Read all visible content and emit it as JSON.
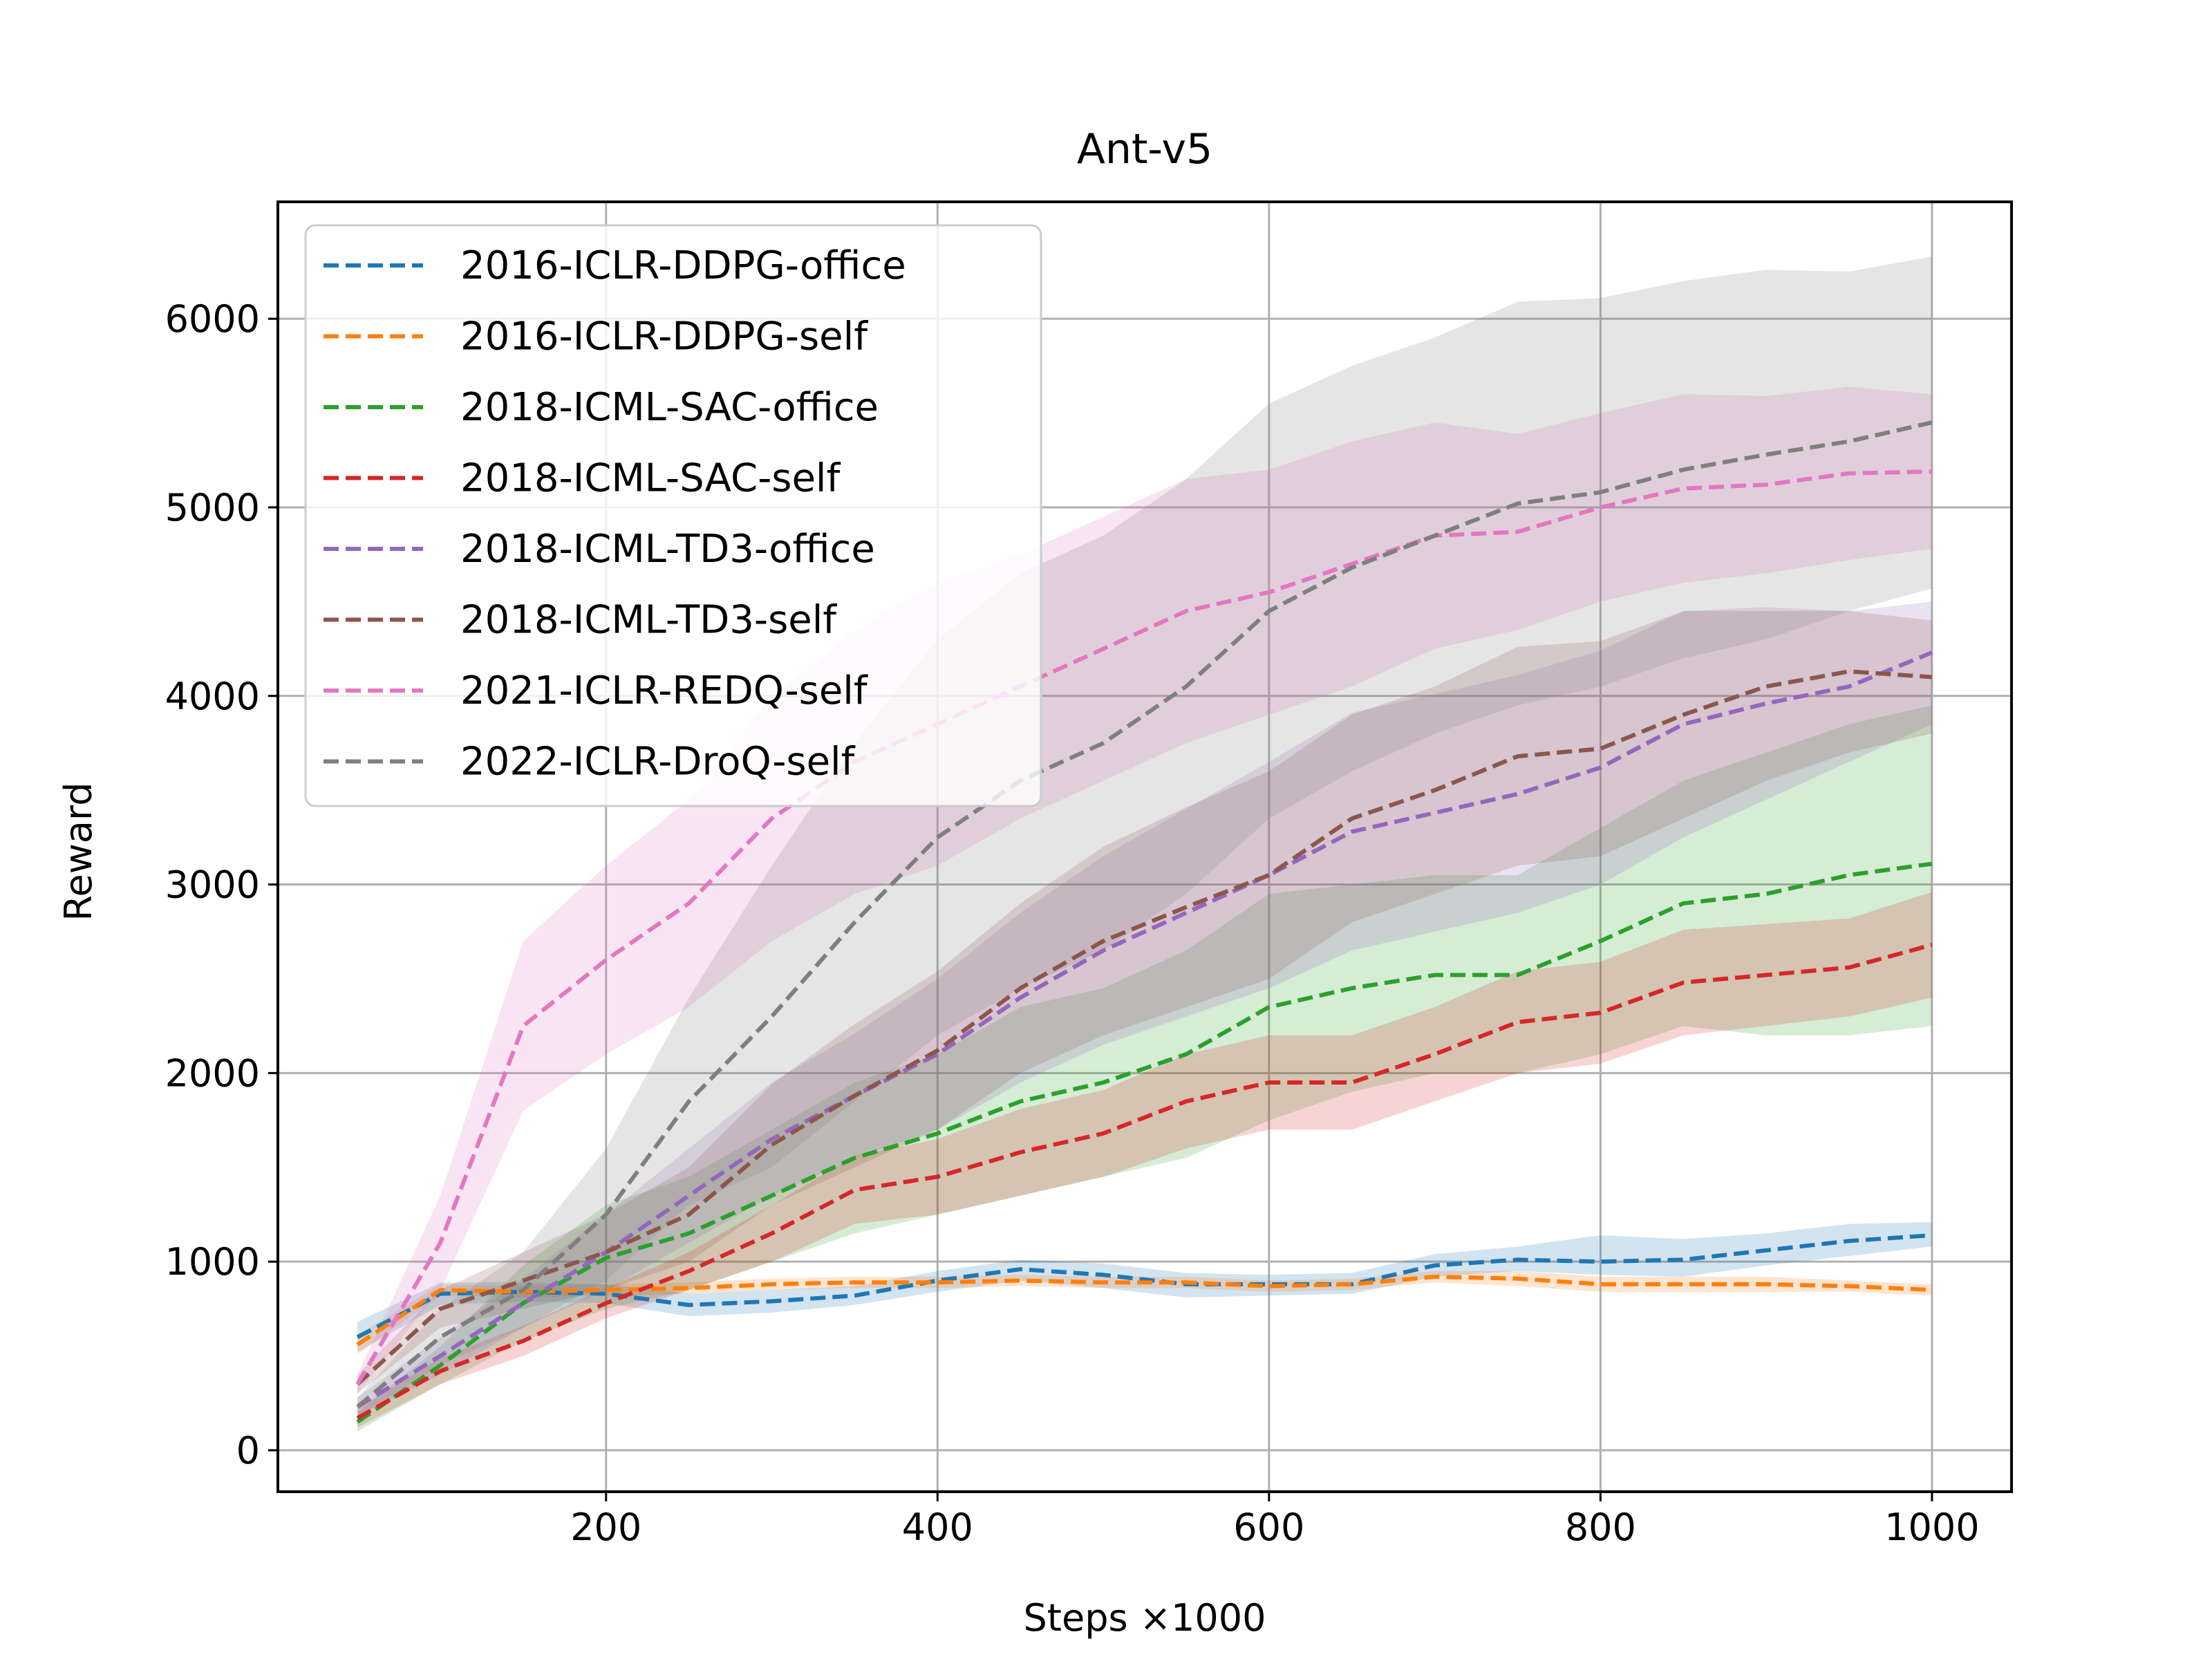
{
  "chart_data": {
    "type": "line",
    "title": "Ant-v5",
    "xlabel": "Steps ×1000",
    "ylabel": "Reward",
    "xlim": [
      2,
      1048
    ],
    "ylim": [
      -220,
      6620
    ],
    "x_ticks": [
      200,
      400,
      600,
      800,
      1000
    ],
    "x_tick_labels": [
      "200",
      "400",
      "600",
      "800",
      "1000"
    ],
    "y_ticks": [
      0,
      1000,
      2000,
      3000,
      4000,
      5000,
      6000
    ],
    "y_tick_labels": [
      "0",
      "1000",
      "2000",
      "3000",
      "4000",
      "5000",
      "6000"
    ],
    "grid": true,
    "legend_position": "top-left",
    "line_style": "dashed",
    "x": [
      50,
      100,
      150,
      200,
      250,
      300,
      350,
      400,
      450,
      500,
      550,
      600,
      650,
      700,
      750,
      800,
      850,
      900,
      950,
      1000
    ],
    "series": [
      {
        "name": "2016-ICLR-DDPG-office",
        "color": "#1f77b4",
        "values": [
          600,
          830,
          840,
          830,
          770,
          790,
          820,
          900,
          960,
          930,
          880,
          880,
          880,
          980,
          1010,
          1000,
          1010,
          1060,
          1110,
          1140
        ],
        "lower": [
          520,
          770,
          790,
          780,
          710,
          730,
          770,
          840,
          900,
          860,
          810,
          820,
          830,
          920,
          950,
          930,
          920,
          980,
          1030,
          1080
        ],
        "upper": [
          680,
          890,
          890,
          880,
          830,
          850,
          870,
          950,
          1010,
          990,
          940,
          930,
          940,
          1040,
          1080,
          1140,
          1120,
          1150,
          1200,
          1210
        ]
      },
      {
        "name": "2016-ICLR-DDPG-self",
        "color": "#ff7f0e",
        "values": [
          560,
          850,
          840,
          850,
          860,
          880,
          890,
          890,
          900,
          890,
          890,
          870,
          880,
          920,
          910,
          880,
          880,
          880,
          870,
          850
        ],
        "lower": [
          510,
          820,
          810,
          820,
          830,
          850,
          860,
          860,
          870,
          860,
          860,
          840,
          850,
          890,
          870,
          840,
          840,
          840,
          840,
          820
        ],
        "upper": [
          610,
          880,
          870,
          880,
          890,
          910,
          920,
          920,
          930,
          920,
          920,
          900,
          910,
          950,
          950,
          920,
          920,
          920,
          900,
          880
        ]
      },
      {
        "name": "2018-ICML-SAC-office",
        "color": "#2ca02c",
        "values": [
          150,
          450,
          780,
          1020,
          1150,
          1350,
          1550,
          1680,
          1850,
          1950,
          2100,
          2350,
          2450,
          2520,
          2520,
          2700,
          2900,
          2950,
          3050,
          3110
        ],
        "lower": [
          100,
          350,
          580,
          750,
          850,
          1000,
          1150,
          1250,
          1350,
          1450,
          1550,
          1750,
          1900,
          2000,
          2000,
          2100,
          2250,
          2200,
          2200,
          2250
        ],
        "upper": [
          200,
          550,
          980,
          1300,
          1450,
          1700,
          1950,
          2100,
          2350,
          2450,
          2650,
          2950,
          3000,
          3050,
          3050,
          3300,
          3550,
          3700,
          3850,
          3950
        ]
      },
      {
        "name": "2018-ICML-SAC-self",
        "color": "#d62728",
        "values": [
          170,
          420,
          580,
          780,
          950,
          1150,
          1380,
          1450,
          1580,
          1680,
          1850,
          1950,
          1950,
          2100,
          2270,
          2320,
          2480,
          2520,
          2560,
          2680
        ],
        "lower": [
          120,
          350,
          500,
          700,
          850,
          1000,
          1200,
          1250,
          1350,
          1450,
          1600,
          1700,
          1700,
          1850,
          2000,
          2050,
          2200,
          2250,
          2300,
          2400
        ],
        "upper": [
          220,
          490,
          660,
          860,
          1050,
          1300,
          1560,
          1650,
          1810,
          1910,
          2100,
          2200,
          2200,
          2350,
          2540,
          2590,
          2760,
          2790,
          2820,
          2960
        ]
      },
      {
        "name": "2018-ICML-TD3-office",
        "color": "#9467bd",
        "values": [
          230,
          500,
          780,
          1050,
          1350,
          1650,
          1880,
          2100,
          2400,
          2650,
          2850,
          3050,
          3280,
          3380,
          3480,
          3620,
          3850,
          3960,
          4050,
          4230
        ],
        "lower": [
          180,
          400,
          650,
          850,
          1100,
          1350,
          1550,
          1700,
          1950,
          2150,
          2300,
          2450,
          2650,
          2750,
          2850,
          3000,
          3250,
          3450,
          3650,
          3850
        ],
        "upper": [
          280,
          600,
          910,
          1250,
          1600,
          1950,
          2210,
          2500,
          2850,
          3150,
          3400,
          3650,
          3910,
          4010,
          4110,
          4240,
          4450,
          4470,
          4450,
          4500
        ]
      },
      {
        "name": "2018-ICML-TD3-self",
        "color": "#8c564b",
        "values": [
          350,
          750,
          900,
          1050,
          1250,
          1620,
          1880,
          2120,
          2450,
          2700,
          2880,
          3050,
          3350,
          3500,
          3680,
          3720,
          3900,
          4050,
          4130,
          4100
        ],
        "lower": [
          300,
          650,
          750,
          850,
          1000,
          1300,
          1500,
          1700,
          2000,
          2200,
          2350,
          2500,
          2800,
          2950,
          3100,
          3150,
          3350,
          3550,
          3700,
          3800
        ],
        "upper": [
          400,
          850,
          1050,
          1250,
          1500,
          1940,
          2260,
          2540,
          2900,
          3200,
          3410,
          3600,
          3900,
          4050,
          4260,
          4290,
          4450,
          4450,
          4450,
          4400
        ]
      },
      {
        "name": "2021-ICLR-REDQ-self",
        "color": "#e377c2",
        "values": [
          350,
          1100,
          2250,
          2600,
          2900,
          3350,
          3650,
          3850,
          4050,
          4250,
          4450,
          4550,
          4700,
          4850,
          4870,
          5000,
          5100,
          5120,
          5180,
          5190
        ],
        "lower": [
          300,
          850,
          1800,
          2100,
          2350,
          2700,
          2950,
          3100,
          3350,
          3550,
          3750,
          3900,
          4050,
          4250,
          4350,
          4500,
          4600,
          4650,
          4720,
          4780
        ],
        "upper": [
          400,
          1350,
          2700,
          3100,
          3450,
          4000,
          4350,
          4600,
          4750,
          4950,
          5150,
          5200,
          5350,
          5450,
          5390,
          5500,
          5600,
          5590,
          5640,
          5600
        ]
      },
      {
        "name": "2022-ICLR-DroQ-self",
        "color": "#7f7f7f",
        "values": [
          230,
          600,
          850,
          1250,
          1850,
          2300,
          2800,
          3250,
          3550,
          3750,
          4050,
          4450,
          4680,
          4850,
          5020,
          5080,
          5200,
          5280,
          5350,
          5450
        ],
        "lower": [
          180,
          450,
          650,
          900,
          1300,
          1500,
          1850,
          2200,
          2450,
          2650,
          2950,
          3350,
          3600,
          3800,
          3950,
          4050,
          4200,
          4300,
          4450,
          4570
        ],
        "upper": [
          280,
          750,
          1050,
          1600,
          2400,
          3100,
          3750,
          4300,
          4650,
          4850,
          5150,
          5550,
          5750,
          5900,
          6090,
          6110,
          6200,
          6260,
          6250,
          6330
        ]
      }
    ]
  }
}
